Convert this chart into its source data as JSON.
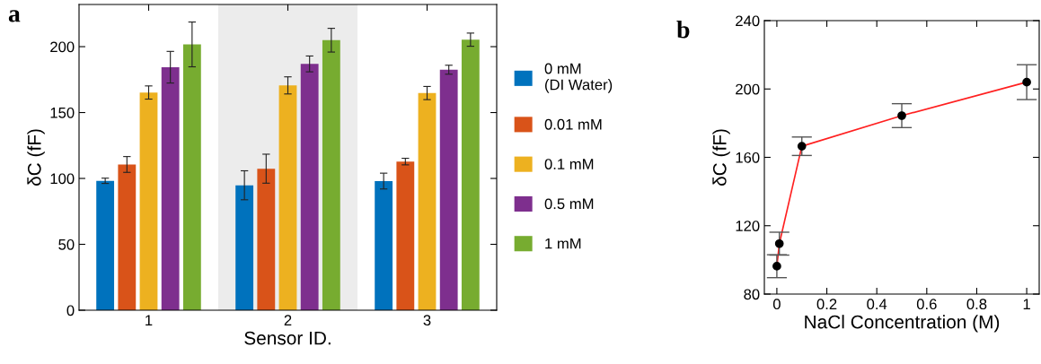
{
  "chart_data": [
    {
      "type": "bar",
      "title": "a",
      "xlabel": "Sensor ID.",
      "ylabel": "δC (fF)",
      "categories": [
        "1",
        "2",
        "3"
      ],
      "ylim": [
        0,
        232
      ],
      "yticks": [
        0,
        50,
        100,
        150,
        200
      ],
      "legend": "right",
      "grid": false,
      "bands": [
        {
          "axis": "x",
          "from": "2",
          "to": "2",
          "color": "#ececec"
        }
      ],
      "series": [
        {
          "name": "0 mM\n(DI Water)",
          "color": "#0072bd",
          "values": [
            98.2,
            94.8,
            98
          ],
          "errors": [
            2,
            11,
            6
          ]
        },
        {
          "name": "0.01 mM",
          "color": "#d95319",
          "values": [
            110.6,
            107.4,
            112.8
          ],
          "errors": [
            6,
            11,
            2.5
          ]
        },
        {
          "name": "0.1 mM",
          "color": "#edb120",
          "values": [
            165.2,
            170.6,
            164.8
          ],
          "errors": [
            5,
            6.5,
            5
          ]
        },
        {
          "name": "0.5 mM",
          "color": "#7e2f8e",
          "values": [
            184.4,
            186.9,
            182.5
          ],
          "errors": [
            12,
            6,
            3.4
          ]
        },
        {
          "name": "1 mM",
          "color": "#77ac30",
          "values": [
            201.7,
            204.9,
            205.3
          ],
          "errors": [
            17,
            9,
            5
          ]
        }
      ]
    },
    {
      "type": "line",
      "title": "b",
      "xlabel": "NaCl Concentration (M)",
      "ylabel": "δC (fF)",
      "xlim": [
        -0.05,
        1.05
      ],
      "ylim": [
        80,
        240
      ],
      "xticks": [
        0,
        0.2,
        0.4,
        0.6,
        0.8,
        1
      ],
      "yticks": [
        80,
        120,
        160,
        200,
        240
      ],
      "marker": "circle",
      "grid": false,
      "legend": false,
      "series": [
        {
          "color": "#ff2020",
          "x": [
            0,
            0.01,
            0.1,
            0.5,
            1
          ],
          "values": [
            96.3,
            109.5,
            166.5,
            184.4,
            204
          ],
          "errors": [
            6.7,
            6.7,
            5.4,
            7,
            10.2
          ]
        }
      ]
    }
  ]
}
